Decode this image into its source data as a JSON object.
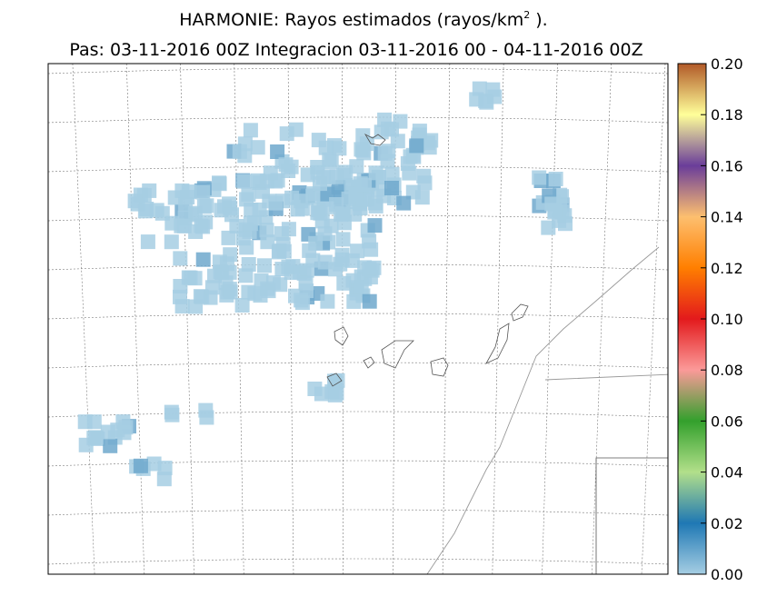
{
  "title": {
    "main": "HARMONIE: Rayos estimados  (rayos/km",
    "sup": "2",
    "end": " ).",
    "subtitle": "Pas: 03-11-2016 00Z Integracion 03-11-2016 00 - 04-11-2016 00Z"
  },
  "colorbar": {
    "ticks": [
      "0.00",
      "0.02",
      "0.04",
      "0.06",
      "0.08",
      "0.10",
      "0.12",
      "0.14",
      "0.16",
      "0.18",
      "0.20"
    ]
  }
}
